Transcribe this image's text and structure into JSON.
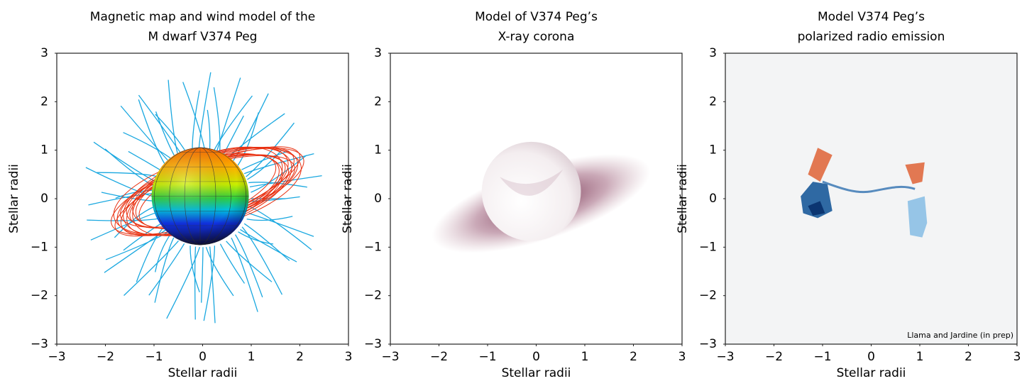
{
  "chart_data": [
    {
      "type": "image",
      "title": [
        "Magnetic map and wind model of the",
        "M dwarf V374 Peg"
      ],
      "x_label": "Stellar radii",
      "y_label": "Stellar radii",
      "xlim": [
        -3,
        3
      ],
      "ylim": [
        -3,
        3
      ],
      "xticks": [
        {
          "value": -3,
          "label": "−3"
        },
        {
          "value": -2,
          "label": "−2"
        },
        {
          "value": -1,
          "label": "−1"
        },
        0,
        1,
        2,
        3
      ],
      "yticks": [
        {
          "value": -3,
          "label": "−3"
        },
        {
          "value": -2,
          "label": "−2"
        },
        {
          "value": -1,
          "label": "−1"
        },
        0,
        1,
        2,
        3
      ]
    },
    {
      "type": "image",
      "title": [
        "Model of V374 Peg’s",
        "X-ray corona"
      ],
      "x_label": "Stellar radii",
      "y_label": "Stellar radii",
      "xlim": [
        -3,
        3
      ],
      "ylim": [
        -3,
        3
      ],
      "xticks": [
        {
          "value": -3,
          "label": "−3"
        },
        {
          "value": -2,
          "label": "−2"
        },
        {
          "value": -1,
          "label": "−1"
        },
        0,
        1,
        2,
        3
      ],
      "yticks": [
        {
          "value": -3,
          "label": "−3"
        },
        {
          "value": -2,
          "label": "−2"
        },
        {
          "value": -1,
          "label": "−1"
        },
        0,
        1,
        2,
        3
      ]
    },
    {
      "type": "image",
      "title": [
        "Model V374 Peg’s",
        "polarized radio emission"
      ],
      "x_label": "Stellar radii",
      "y_label": "Stellar radii",
      "xlim": [
        -3,
        3
      ],
      "ylim": [
        -3,
        3
      ],
      "xticks": [
        {
          "value": -3,
          "label": "−3"
        },
        {
          "value": -2,
          "label": "−2"
        },
        {
          "value": -1,
          "label": "−1"
        },
        0,
        1,
        2,
        3
      ],
      "yticks": [
        {
          "value": -3,
          "label": "−3"
        },
        {
          "value": -2,
          "label": "−2"
        },
        {
          "value": -1,
          "label": "−1"
        },
        0,
        1,
        2,
        3
      ],
      "annotation": "Llama and Jardine (in prep)"
    }
  ]
}
